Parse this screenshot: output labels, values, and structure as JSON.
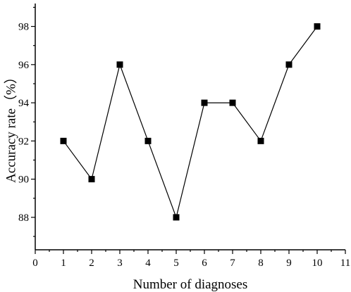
{
  "chart_data": {
    "type": "line",
    "xlabel": "Number of diagnoses",
    "ylabel": "Accuracy rate（%）",
    "xlim": [
      0,
      11
    ],
    "ylim": [
      86.3,
      99.2
    ],
    "xticks": [
      0,
      1,
      2,
      3,
      4,
      5,
      6,
      7,
      8,
      9,
      10,
      11
    ],
    "yticks": [
      88,
      90,
      92,
      94,
      96,
      98
    ],
    "grid": false,
    "legend": "none",
    "marker": "square",
    "color": "#000000",
    "series": [
      {
        "x": [
          1,
          2,
          3,
          4,
          5,
          6,
          7,
          8,
          9,
          10
        ],
        "values": [
          92,
          90,
          96,
          92,
          88,
          94,
          94,
          92,
          96,
          98
        ]
      }
    ]
  }
}
